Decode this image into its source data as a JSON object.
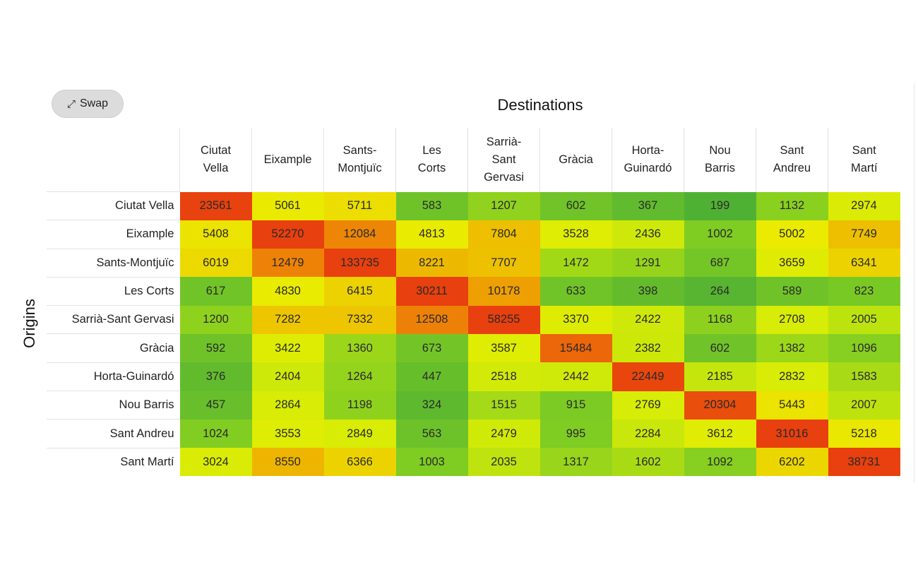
{
  "toolbar": {
    "swap_label": "Swap",
    "swap_icon": "⤢"
  },
  "chart_data": {
    "type": "heatmap",
    "xlabel": "Destinations",
    "ylabel": "Origins",
    "columns": [
      "Ciutat Vella",
      "Eixample",
      "Sants-Montjuïc",
      "Les Corts",
      "Sarrià-Sant Gervasi",
      "Gràcia",
      "Horta-Guinardó",
      "Nou Barris",
      "Sant Andreu",
      "Sant Martí"
    ],
    "rows": [
      "Ciutat Vella",
      "Eixample",
      "Sants-Montjuïc",
      "Les Corts",
      "Sarrià-Sant Gervasi",
      "Gràcia",
      "Horta-Guinardó",
      "Nou Barris",
      "Sant Andreu",
      "Sant Martí"
    ],
    "values": [
      [
        23561,
        5061,
        5711,
        583,
        1207,
        602,
        367,
        199,
        1132,
        2974
      ],
      [
        5408,
        52270,
        12084,
        4813,
        7804,
        3528,
        2436,
        1002,
        5002,
        7749
      ],
      [
        6019,
        12479,
        133735,
        8221,
        7707,
        1472,
        1291,
        687,
        3659,
        6341
      ],
      [
        617,
        4830,
        6415,
        30211,
        10178,
        633,
        398,
        264,
        589,
        823
      ],
      [
        1200,
        7282,
        7332,
        12508,
        58255,
        3370,
        2422,
        1168,
        2708,
        2005
      ],
      [
        592,
        3422,
        1360,
        673,
        3587,
        15484,
        2382,
        602,
        1382,
        1096
      ],
      [
        376,
        2404,
        1264,
        447,
        2518,
        2442,
        22449,
        2185,
        2832,
        1583
      ],
      [
        457,
        2864,
        1198,
        324,
        1515,
        915,
        2769,
        20304,
        5443,
        2007
      ],
      [
        1024,
        3553,
        2849,
        563,
        2479,
        995,
        2284,
        3612,
        31016,
        5218
      ],
      [
        3024,
        8550,
        6366,
        1003,
        2035,
        1317,
        1602,
        1092,
        6202,
        38731
      ]
    ],
    "color_scale": {
      "low": "#4caf35",
      "mid": "#e8ec00",
      "high": "#ec4a0c"
    }
  }
}
